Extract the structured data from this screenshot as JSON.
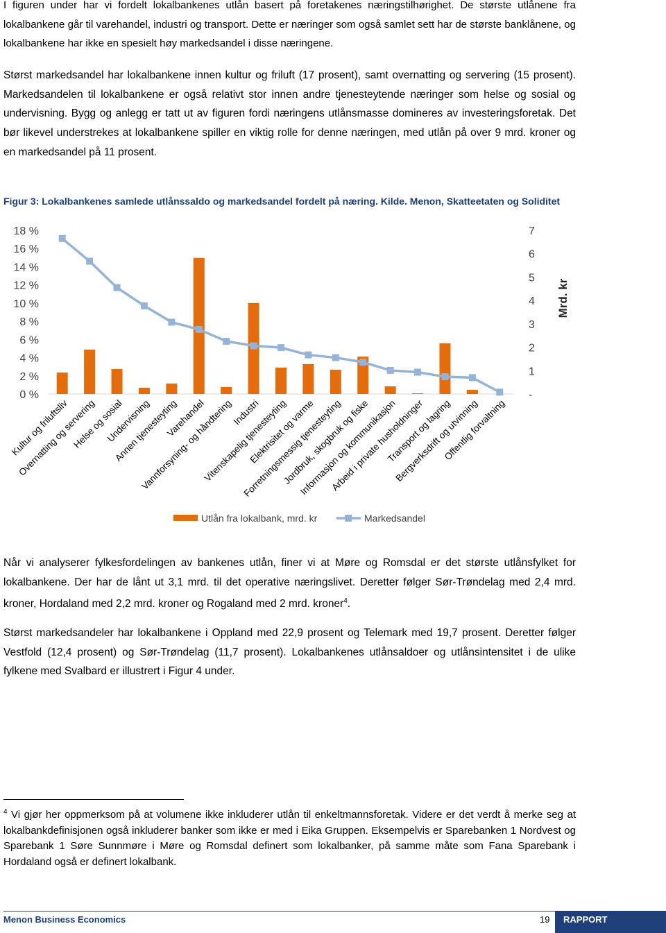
{
  "paragraphs": [
    {
      "text": "I figuren under har vi fordelt lokalbankenes utlån basert på foretakenes næringstilhørighet. De største utlånene fra lokalbankene går til varehandel, industri og transport. Dette er næringer som også samlet sett har de største banklånene, og lokalbankene har ikke en spesielt høy markedsandel i disse næringene."
    },
    {
      "text": "Størst markedsandel har lokalbankene innen kultur og friluft (17 prosent), samt overnatting og servering (15 prosent). Markedsandelen til lokalbankene er også relativt stor innen andre tjenesteytende næringer som helse og sosial og undervisning. Bygg og anlegg er tatt ut av figuren fordi næringens utlånsmasse domineres av investeringsforetak. Det bør likevel understrekes at lokalbankene spiller en viktig rolle for denne næringen, med utlån på over 9 mrd. kroner og en markedsandel på 11 prosent."
    },
    {
      "text": "Når vi analyserer fylkesfordelingen av bankenes utlån, finer vi at Møre og Romsdal er det største utlånsfylket for lokalbankene. Der har de lånt ut 3,1 mrd. til det operative næringslivet. Deretter følger Sør-Trøndelag med 2,4 mrd. kroner, Hordaland med 2,2 mrd. kroner og Rogaland med 2 mrd. kroner",
      "note_ref": "4",
      "end": "."
    },
    {
      "text": "Størst markedsandeler har lokalbankene i Oppland med 22,9 prosent og Telemark med 19,7 prosent. Deretter følger Vestfold (12,4 prosent) og Sør-Trøndelag (11,7 prosent). Lokalbankenes utlånsaldoer og utlånsintensitet i de ulike fylkene med Svalbard er illustrert i Figur 4 under."
    }
  ],
  "figure_caption": "Figur 3: Lokalbankenes samlede utlånssaldo og markedsandel fordelt på næring. Kilde. Menon, Skatteetaten og Soliditet",
  "chart_data": {
    "type": "combo",
    "categories": [
      "Kultur og friluftsliv",
      "Overnatting og servering",
      "Helse og sosial",
      "Undervisning",
      "Annen tjenesteyting",
      "Varehandel",
      "Vannforsyning- og håndtering",
      "Industri",
      "Vitenskapelig tjenesteyting",
      "Elektrisitet og varme",
      "Forretningsmessig tjenesteyting",
      "Jordbruk, skogbruk og fiske",
      "Informasjon og kommunikasjon",
      "Arbeid i private husholdninger",
      "Transport og lagring",
      "Bergverksdrift og utvinning",
      "Offentlig forvaltning"
    ],
    "series": [
      {
        "name": "Utlån fra lokalbank, mrd. kr",
        "type": "bar",
        "axis": "y2",
        "color": "#e46c0a",
        "values": [
          0.92,
          1.9,
          1.07,
          0.27,
          0.45,
          5.82,
          0.3,
          3.89,
          1.13,
          1.28,
          1.04,
          1.6,
          0.33,
          0.03,
          2.17,
          0.18,
          0
        ]
      },
      {
        "name": "Markedsandel",
        "type": "line",
        "axis": "y",
        "color": "#95b3d7",
        "values": [
          17.1,
          14.6,
          11.7,
          9.7,
          7.9,
          7.1,
          5.8,
          5.3,
          5.1,
          4.3,
          4.0,
          3.5,
          2.6,
          2.4,
          1.9,
          1.8,
          0.2
        ]
      }
    ],
    "ylim": [
      0,
      18
    ],
    "yticks": [
      {
        "value": 0,
        "label": "0 %"
      },
      {
        "value": 2,
        "label": "2 %"
      },
      {
        "value": 4,
        "label": "4 %"
      },
      {
        "value": 6,
        "label": "6 %"
      },
      {
        "value": 8,
        "label": "8 %"
      },
      {
        "value": 10,
        "label": "10 %"
      },
      {
        "value": 12,
        "label": "12 %"
      },
      {
        "value": 14,
        "label": "14 %"
      },
      {
        "value": 16,
        "label": "16 %"
      },
      {
        "value": 18,
        "label": "18 %"
      }
    ],
    "y2lim": [
      0,
      7
    ],
    "y2ticks": [
      {
        "value": 0,
        "label": "-"
      },
      1,
      2,
      3,
      4,
      5,
      6,
      7
    ],
    "y2_label": "Mrd. kr",
    "legend": "bottom"
  },
  "footnote": {
    "marker": "4",
    "text": "Vi gjør her oppmerksom på at volumene ikke inkluderer utlån til enkeltmannsforetak. Videre er det verdt å merke seg at lokalbankdefinisjonen også inkluderer banker som ikke er med i Eika Gruppen. Eksempelvis er Sparebanken 1 Nordvest og Sparebank 1 Søre Sunnmøre i Møre og Romsdal definert som lokalbanker, på samme måte som Fana Sparebank i Hordaland også er definert lokalbank."
  },
  "footer": {
    "left": "Menon Business Economics",
    "page": "19",
    "right": "RAPPORT"
  }
}
